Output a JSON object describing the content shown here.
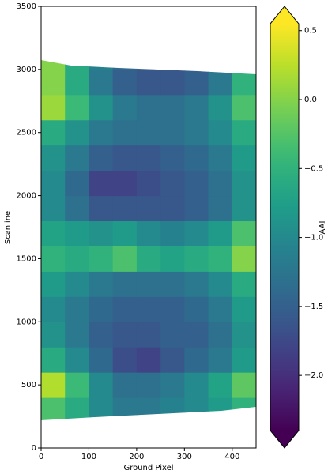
{
  "chart_data": {
    "type": "heatmap",
    "xlabel": "Ground Pixel",
    "ylabel": "Scanline",
    "x_bins": [
      0,
      50,
      100,
      150,
      200,
      250,
      300,
      350,
      400,
      450
    ],
    "y_bins": [
      200,
      400,
      600,
      800,
      1000,
      1200,
      1400,
      1600,
      1800,
      2000,
      2200,
      2400,
      2600,
      2800,
      3000,
      3100
    ],
    "values": [
      [
        -0.3,
        -0.6,
        -1.0,
        -1.2,
        -1.2,
        -1.1,
        -1.0,
        -0.8,
        -0.5
      ],
      [
        0.2,
        -0.4,
        -1.0,
        -1.3,
        -1.3,
        -1.2,
        -1.0,
        -0.7,
        -0.2
      ],
      [
        -0.6,
        -1.0,
        -1.4,
        -1.7,
        -1.8,
        -1.6,
        -1.4,
        -1.2,
        -0.8
      ],
      [
        -0.9,
        -1.2,
        -1.5,
        -1.6,
        -1.6,
        -1.5,
        -1.5,
        -1.3,
        -0.9
      ],
      [
        -1.0,
        -1.2,
        -1.4,
        -1.5,
        -1.5,
        -1.5,
        -1.4,
        -1.2,
        -0.8
      ],
      [
        -0.8,
        -1.0,
        -1.2,
        -1.3,
        -1.3,
        -1.3,
        -1.2,
        -1.0,
        -0.6
      ],
      [
        -0.5,
        -0.6,
        -0.5,
        -0.3,
        -0.6,
        -0.7,
        -0.6,
        -0.5,
        0.0
      ],
      [
        -0.7,
        -0.8,
        -0.9,
        -0.8,
        -1.0,
        -1.1,
        -1.0,
        -0.8,
        -0.3
      ],
      [
        -1.0,
        -1.3,
        -1.6,
        -1.6,
        -1.6,
        -1.6,
        -1.5,
        -1.3,
        -0.9
      ],
      [
        -1.0,
        -1.4,
        -1.8,
        -1.8,
        -1.7,
        -1.6,
        -1.5,
        -1.3,
        -0.9
      ],
      [
        -0.9,
        -1.2,
        -1.5,
        -1.6,
        -1.6,
        -1.5,
        -1.4,
        -1.2,
        -0.8
      ],
      [
        -0.6,
        -0.9,
        -1.2,
        -1.3,
        -1.3,
        -1.3,
        -1.2,
        -1.0,
        -0.6
      ],
      [
        0.1,
        -0.4,
        -0.9,
        -1.2,
        -1.3,
        -1.3,
        -1.2,
        -0.9,
        -0.3
      ],
      [
        0.0,
        -0.6,
        -1.2,
        -1.5,
        -1.6,
        -1.6,
        -1.5,
        -1.2,
        -0.5
      ],
      [
        0.0,
        -0.6,
        -1.1,
        -1.4,
        -1.5,
        -1.5,
        -1.4,
        -1.2,
        -0.5
      ]
    ],
    "xlim": [
      0,
      450
    ],
    "xticks": [
      0,
      100,
      200,
      300,
      400
    ],
    "ylim": [
      0,
      3500
    ],
    "yticks": [
      0,
      500,
      1000,
      1500,
      2000,
      2500,
      3000,
      3500
    ],
    "colormap": "viridis",
    "colorbar_label": "AAI",
    "clim": [
      -2.4,
      0.55
    ],
    "colorbar_extend": "both",
    "colorbar_ticks": [
      {
        "value": -2.0,
        "label": "−2.0"
      },
      {
        "value": -1.5,
        "label": "−1.5"
      },
      {
        "value": -1.0,
        "label": "−1.0"
      },
      {
        "value": -0.5,
        "label": "−0.5"
      },
      {
        "value": 0.0,
        "label": "0.0"
      },
      0.5
    ]
  }
}
